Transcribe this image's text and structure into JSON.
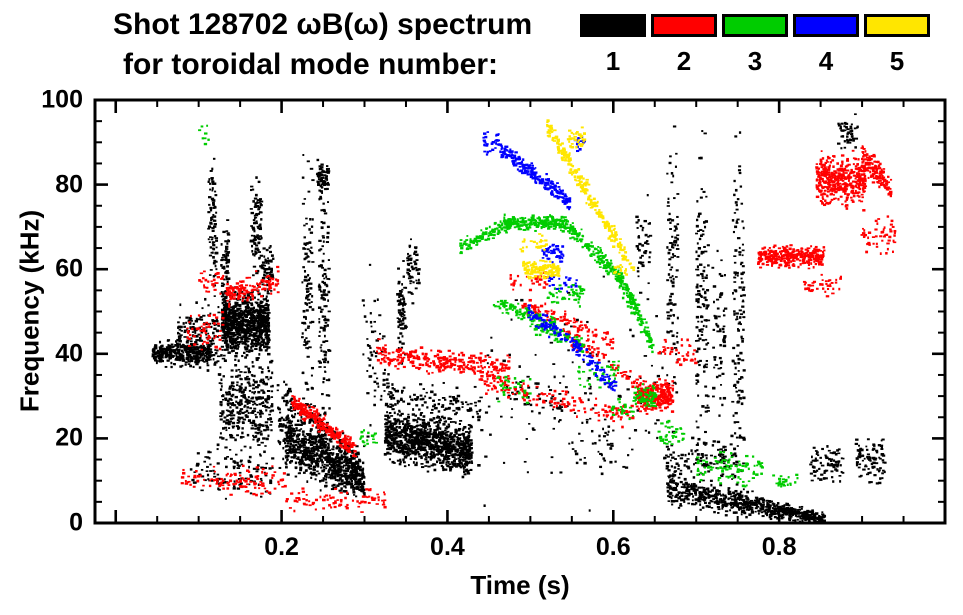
{
  "chart_data": {
    "type": "scatter",
    "title": "Shot 128702 ωB(ω) spectrum",
    "subtitle": "for toroidal mode number:",
    "xlabel": "Time (s)",
    "ylabel": "Frequency (kHz)",
    "xlim": [
      -0.025,
      1.0
    ],
    "ylim": [
      0,
      100
    ],
    "xticks": [
      0.2,
      0.4,
      0.6,
      0.8
    ],
    "yticks": [
      0,
      20,
      40,
      60,
      80,
      100
    ],
    "x_major_step": 0.2,
    "x_minor_step": 0.05,
    "y_minor_step": 5,
    "grid": false,
    "legend_position": "top-right",
    "legend": [
      {
        "label": "1",
        "color": "#000000"
      },
      {
        "label": "2",
        "color": "#ff0000"
      },
      {
        "label": "3",
        "color": "#00cc00"
      },
      {
        "label": "4",
        "color": "#0000ff"
      },
      {
        "label": "5",
        "color": "#ffe600"
      }
    ],
    "clusters": [
      {
        "m": 1,
        "n": 350,
        "t": [
          0.045,
          0.115
        ],
        "c": [
          40,
          40
        ],
        "s": [
          3,
          4
        ]
      },
      {
        "m": 1,
        "n": 150,
        "t": [
          0.075,
          0.125
        ],
        "c": [
          45,
          45
        ],
        "s": [
          7,
          10
        ]
      },
      {
        "m": 1,
        "n": 80,
        "t": [
          0.112,
          0.122
        ],
        "c": [
          70,
          70
        ],
        "s": [
          18,
          18
        ]
      },
      {
        "m": 1,
        "n": 60,
        "t": [
          0.127,
          0.137
        ],
        "c": [
          62,
          62
        ],
        "s": [
          12,
          12
        ]
      },
      {
        "m": 1,
        "n": 900,
        "t": [
          0.128,
          0.185
        ],
        "c": [
          47,
          47
        ],
        "s": [
          9,
          9
        ]
      },
      {
        "m": 1,
        "n": 350,
        "t": [
          0.125,
          0.19
        ],
        "c": [
          28,
          28
        ],
        "s": [
          13,
          13
        ]
      },
      {
        "m": 1,
        "n": 90,
        "t": [
          0.163,
          0.176
        ],
        "c": [
          70,
          70
        ],
        "s": [
          15,
          15
        ]
      },
      {
        "m": 1,
        "n": 60,
        "t": [
          0.176,
          0.19
        ],
        "c": [
          60,
          60
        ],
        "s": [
          6,
          6
        ]
      },
      {
        "m": 1,
        "n": 110,
        "t": [
          0.09,
          0.19
        ],
        "c": [
          12,
          12
        ],
        "s": [
          7,
          7
        ]
      },
      {
        "m": 1,
        "n": 60,
        "t": [
          0.195,
          0.212
        ],
        "c": [
          24,
          24
        ],
        "s": [
          12,
          12
        ]
      },
      {
        "m": 1,
        "n": 110,
        "t": [
          0.225,
          0.238
        ],
        "c": [
          55,
          55
        ],
        "s": [
          38,
          38
        ]
      },
      {
        "m": 1,
        "n": 130,
        "t": [
          0.245,
          0.258
        ],
        "c": [
          50,
          50
        ],
        "s": [
          38,
          38
        ]
      },
      {
        "m": 1,
        "n": 70,
        "t": [
          0.243,
          0.257
        ],
        "c": [
          82,
          82
        ],
        "s": [
          5,
          5
        ]
      },
      {
        "m": 1,
        "n": 800,
        "t": [
          0.205,
          0.3
        ],
        "c": [
          20,
          10
        ],
        "s": [
          9,
          5
        ]
      },
      {
        "m": 1,
        "n": 150,
        "t": [
          0.205,
          0.295
        ],
        "c": [
          30,
          15
        ],
        "s": [
          4,
          3
        ]
      },
      {
        "m": 1,
        "n": 1000,
        "t": [
          0.325,
          0.43
        ],
        "c": [
          21,
          17
        ],
        "s": [
          8,
          7
        ]
      },
      {
        "m": 1,
        "n": 130,
        "t": [
          0.325,
          0.44
        ],
        "c": [
          31,
          26
        ],
        "s": [
          6,
          5
        ]
      },
      {
        "m": 1,
        "n": 70,
        "t": [
          0.34,
          0.35
        ],
        "c": [
          50,
          50
        ],
        "s": [
          14,
          14
        ]
      },
      {
        "m": 1,
        "n": 50,
        "t": [
          0.352,
          0.366
        ],
        "c": [
          60,
          60
        ],
        "s": [
          8,
          8
        ]
      },
      {
        "m": 1,
        "n": 60,
        "t": [
          0.298,
          0.325
        ],
        "c": [
          38,
          38
        ],
        "s": [
          22,
          22
        ]
      },
      {
        "m": 1,
        "n": 120,
        "t": [
          0.43,
          0.66
        ],
        "c": [
          30,
          30
        ],
        "s": [
          28,
          28
        ]
      },
      {
        "m": 1,
        "n": 50,
        "t": [
          0.628,
          0.645
        ],
        "c": [
          66,
          66
        ],
        "s": [
          14,
          14
        ]
      },
      {
        "m": 1,
        "n": 100,
        "t": [
          0.665,
          0.678
        ],
        "c": [
          58,
          58
        ],
        "s": [
          36,
          36
        ]
      },
      {
        "m": 1,
        "n": 150,
        "t": [
          0.7,
          0.715
        ],
        "c": [
          50,
          50
        ],
        "s": [
          45,
          45
        ]
      },
      {
        "m": 1,
        "n": 60,
        "t": [
          0.72,
          0.736
        ],
        "c": [
          45,
          45
        ],
        "s": [
          20,
          20
        ]
      },
      {
        "m": 1,
        "n": 130,
        "t": [
          0.744,
          0.758
        ],
        "c": [
          50,
          50
        ],
        "s": [
          42,
          42
        ]
      },
      {
        "m": 1,
        "n": 700,
        "t": [
          0.665,
          0.855
        ],
        "c": [
          8,
          1
        ],
        "s": [
          5,
          1.5
        ]
      },
      {
        "m": 1,
        "n": 130,
        "t": [
          0.66,
          0.75
        ],
        "c": [
          15,
          15
        ],
        "s": [
          7,
          7
        ]
      },
      {
        "m": 1,
        "n": 80,
        "t": [
          0.838,
          0.878
        ],
        "c": [
          14,
          14
        ],
        "s": [
          6,
          6
        ]
      },
      {
        "m": 1,
        "n": 90,
        "t": [
          0.893,
          0.928
        ],
        "c": [
          15,
          15
        ],
        "s": [
          7,
          7
        ]
      },
      {
        "m": 1,
        "n": 45,
        "t": [
          0.87,
          0.896
        ],
        "c": [
          92,
          92
        ],
        "s": [
          5,
          5
        ]
      },
      {
        "m": 1,
        "n": 40,
        "t": [
          0.46,
          0.55
        ],
        "c": [
          30,
          30
        ],
        "s": [
          6,
          6
        ]
      },
      {
        "m": 1,
        "n": 30,
        "t": [
          0.55,
          0.6
        ],
        "c": [
          18,
          18
        ],
        "s": [
          8,
          8
        ]
      },
      {
        "m": 2,
        "n": 50,
        "t": [
          0.085,
          0.13
        ],
        "c": [
          45,
          45
        ],
        "s": [
          5,
          5
        ]
      },
      {
        "m": 2,
        "n": 30,
        "t": [
          0.1,
          0.13
        ],
        "c": [
          57,
          57
        ],
        "s": [
          4,
          4
        ]
      },
      {
        "m": 2,
        "n": 130,
        "t": [
          0.133,
          0.196
        ],
        "c": [
          54,
          57
        ],
        "s": [
          3.5,
          3.5
        ]
      },
      {
        "m": 2,
        "n": 110,
        "t": [
          0.08,
          0.205
        ],
        "c": [
          10,
          10
        ],
        "s": [
          4,
          4
        ]
      },
      {
        "m": 2,
        "n": 60,
        "t": [
          0.205,
          0.3
        ],
        "c": [
          5,
          5
        ],
        "s": [
          3,
          3
        ]
      },
      {
        "m": 2,
        "n": 260,
        "t": [
          0.213,
          0.29
        ],
        "c": [
          29,
          17
        ],
        "s": [
          2.5,
          2.5
        ]
      },
      {
        "m": 2,
        "n": 300,
        "t": [
          0.315,
          0.475
        ],
        "c": [
          40,
          36
        ],
        "s": [
          3.5,
          4
        ]
      },
      {
        "m": 2,
        "n": 150,
        "t": [
          0.445,
          0.625
        ],
        "c": [
          33,
          25
        ],
        "s": [
          3,
          3
        ]
      },
      {
        "m": 2,
        "n": 100,
        "t": [
          0.49,
          0.6
        ],
        "c": [
          52,
          43
        ],
        "s": [
          2.5,
          2.5
        ]
      },
      {
        "m": 2,
        "n": 70,
        "t": [
          0.54,
          0.63
        ],
        "c": [
          45,
          33
        ],
        "s": [
          2.5,
          2.5
        ]
      },
      {
        "m": 2,
        "n": 280,
        "t": [
          0.628,
          0.672
        ],
        "c": [
          30,
          30
        ],
        "s": [
          4.5,
          4.5
        ]
      },
      {
        "m": 2,
        "n": 40,
        "t": [
          0.655,
          0.7
        ],
        "c": [
          40,
          40
        ],
        "s": [
          4,
          4
        ]
      },
      {
        "m": 2,
        "n": 320,
        "t": [
          0.775,
          0.855
        ],
        "c": [
          63,
          63
        ],
        "s": [
          2.8,
          2.8
        ]
      },
      {
        "m": 2,
        "n": 40,
        "t": [
          0.83,
          0.875
        ],
        "c": [
          56,
          56
        ],
        "s": [
          3,
          3
        ]
      },
      {
        "m": 2,
        "n": 400,
        "t": [
          0.845,
          0.905
        ],
        "c": [
          81,
          81
        ],
        "s": [
          7,
          7
        ]
      },
      {
        "m": 2,
        "n": 130,
        "t": [
          0.9,
          0.935
        ],
        "c": [
          87,
          79
        ],
        "s": [
          4,
          4
        ]
      },
      {
        "m": 2,
        "n": 50,
        "t": [
          0.9,
          0.94
        ],
        "c": [
          68,
          68
        ],
        "s": [
          6,
          6
        ]
      },
      {
        "m": 2,
        "n": 25,
        "t": [
          0.295,
          0.325
        ],
        "c": [
          6,
          6
        ],
        "s": [
          3,
          3
        ]
      },
      {
        "m": 2,
        "n": 30,
        "t": [
          0.475,
          0.52
        ],
        "c": [
          57,
          57
        ],
        "s": [
          3,
          3
        ]
      },
      {
        "m": 3,
        "n": 110,
        "t": [
          0.415,
          0.475
        ],
        "c": [
          65,
          71
        ],
        "s": [
          2,
          2
        ]
      },
      {
        "m": 3,
        "n": 220,
        "t": [
          0.468,
          0.545
        ],
        "c": [
          71,
          71
        ],
        "s": [
          2.2,
          2.2
        ]
      },
      {
        "m": 3,
        "n": 140,
        "t": [
          0.545,
          0.605
        ],
        "c": [
          70,
          59
        ],
        "s": [
          2.5,
          2.5
        ]
      },
      {
        "m": 3,
        "n": 150,
        "t": [
          0.605,
          0.648
        ],
        "c": [
          59,
          42
        ],
        "s": [
          3,
          3
        ]
      },
      {
        "m": 3,
        "n": 90,
        "t": [
          0.455,
          0.53
        ],
        "c": [
          52,
          47
        ],
        "s": [
          2,
          2
        ]
      },
      {
        "m": 3,
        "n": 70,
        "t": [
          0.5,
          0.565
        ],
        "c": [
          47,
          42
        ],
        "s": [
          2,
          2
        ]
      },
      {
        "m": 3,
        "n": 50,
        "t": [
          0.52,
          0.565
        ],
        "c": [
          54,
          54
        ],
        "s": [
          3,
          3
        ]
      },
      {
        "m": 3,
        "n": 40,
        "t": [
          0.555,
          0.61
        ],
        "c": [
          35,
          35
        ],
        "s": [
          4,
          4
        ]
      },
      {
        "m": 3,
        "n": 70,
        "t": [
          0.625,
          0.652
        ],
        "c": [
          30,
          30
        ],
        "s": [
          3,
          3
        ]
      },
      {
        "m": 3,
        "n": 35,
        "t": [
          0.655,
          0.685
        ],
        "c": [
          21,
          21
        ],
        "s": [
          4,
          4
        ]
      },
      {
        "m": 3,
        "n": 90,
        "t": [
          0.7,
          0.78
        ],
        "c": [
          13,
          13
        ],
        "s": [
          5,
          5
        ]
      },
      {
        "m": 3,
        "n": 25,
        "t": [
          0.79,
          0.825
        ],
        "c": [
          10,
          10
        ],
        "s": [
          3,
          3
        ]
      },
      {
        "m": 3,
        "n": 8,
        "t": [
          0.1,
          0.112
        ],
        "c": [
          92,
          92
        ],
        "s": [
          3,
          3
        ]
      },
      {
        "m": 3,
        "n": 20,
        "t": [
          0.295,
          0.315
        ],
        "c": [
          20,
          20
        ],
        "s": [
          3,
          3
        ]
      },
      {
        "m": 3,
        "n": 30,
        "t": [
          0.46,
          0.5
        ],
        "c": [
          32,
          32
        ],
        "s": [
          4,
          4
        ]
      },
      {
        "m": 3,
        "n": 25,
        "t": [
          0.598,
          0.625
        ],
        "c": [
          27,
          27
        ],
        "s": [
          3,
          3
        ]
      },
      {
        "m": 4,
        "n": 220,
        "t": [
          0.462,
          0.548
        ],
        "c": [
          89,
          76
        ],
        "s": [
          2.5,
          2.5
        ]
      },
      {
        "m": 4,
        "n": 30,
        "t": [
          0.443,
          0.463
        ],
        "c": [
          90,
          90
        ],
        "s": [
          3,
          3
        ]
      },
      {
        "m": 4,
        "n": 90,
        "t": [
          0.497,
          0.56
        ],
        "c": [
          50,
          41
        ],
        "s": [
          2.5,
          2.5
        ]
      },
      {
        "m": 4,
        "n": 45,
        "t": [
          0.515,
          0.54
        ],
        "c": [
          64,
          64
        ],
        "s": [
          2.5,
          2.5
        ]
      },
      {
        "m": 4,
        "n": 70,
        "t": [
          0.553,
          0.603
        ],
        "c": [
          42,
          32
        ],
        "s": [
          2.5,
          2.5
        ]
      },
      {
        "m": 4,
        "n": 20,
        "t": [
          0.52,
          0.56
        ],
        "c": [
          57,
          57
        ],
        "s": [
          3,
          3
        ]
      },
      {
        "m": 4,
        "n": 15,
        "t": [
          0.553,
          0.566
        ],
        "c": [
          90,
          90
        ],
        "s": [
          2,
          2
        ]
      },
      {
        "m": 5,
        "n": 240,
        "t": [
          0.52,
          0.615
        ],
        "c": [
          94,
          63
        ],
        "s": [
          3,
          3
        ]
      },
      {
        "m": 5,
        "n": 140,
        "t": [
          0.492,
          0.535
        ],
        "c": [
          60,
          60
        ],
        "s": [
          2.8,
          2.8
        ]
      },
      {
        "m": 5,
        "n": 35,
        "t": [
          0.545,
          0.566
        ],
        "c": [
          91,
          91
        ],
        "s": [
          3,
          3
        ]
      },
      {
        "m": 5,
        "n": 25,
        "t": [
          0.488,
          0.52
        ],
        "c": [
          66,
          66
        ],
        "s": [
          2.5,
          2.5
        ]
      },
      {
        "m": 5,
        "n": 20,
        "t": [
          0.6,
          0.628
        ],
        "c": [
          60,
          60
        ],
        "s": [
          3,
          3
        ]
      }
    ]
  }
}
